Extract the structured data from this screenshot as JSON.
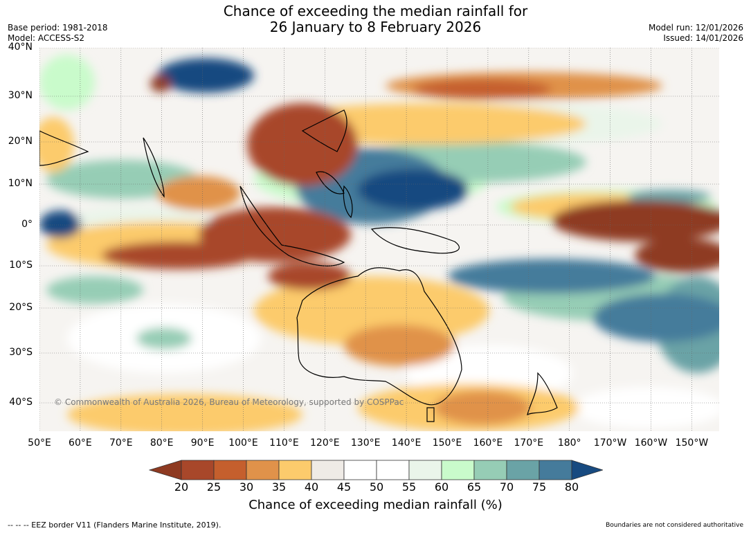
{
  "header": {
    "title_line1": "Chance of exceeding the median rainfall for",
    "title_line2": "26 January to 8 February 2026",
    "base_period": "Base period: 1981-2018",
    "model": "Model: ACCESS-S2",
    "model_run": "Model run: 12/01/2026",
    "issued": "Issued: 14/01/2026"
  },
  "map": {
    "lat_labels": [
      "40°N",
      "30°N",
      "20°N",
      "10°N",
      "0°",
      "10°S",
      "20°S",
      "30°S",
      "40°S"
    ],
    "lon_labels": [
      "50°E",
      "60°E",
      "70°E",
      "80°E",
      "90°E",
      "100°E",
      "110°E",
      "120°E",
      "130°E",
      "140°E",
      "150°E",
      "160°E",
      "170°E",
      "180°",
      "170°W",
      "160°W",
      "150°W"
    ],
    "copyright": "© Commonwealth of Australia 2026, Bureau of Meteorology, supported by COSPPac"
  },
  "colorbar": {
    "ticks": [
      "20",
      "25",
      "30",
      "35",
      "40",
      "45",
      "50",
      "55",
      "60",
      "65",
      "70",
      "75",
      "80"
    ],
    "colors": [
      "#8e3a21",
      "#a8472a",
      "#c55f2d",
      "#e0924a",
      "#fccb6c",
      "#efebe6",
      "#ffffff",
      "#ffffff",
      "#eaf5ea",
      "#c9fbcb",
      "#96cdb5",
      "#6aa3a6",
      "#457b9b",
      "#174a80"
    ],
    "label": "Chance of exceeding median rainfall (%)"
  },
  "footer": {
    "eez_note": "--  --  -- EEZ border V11 (Flanders Marine Institute, 2019).",
    "boundaries_note": "Boundaries are not considered authoritative"
  }
}
